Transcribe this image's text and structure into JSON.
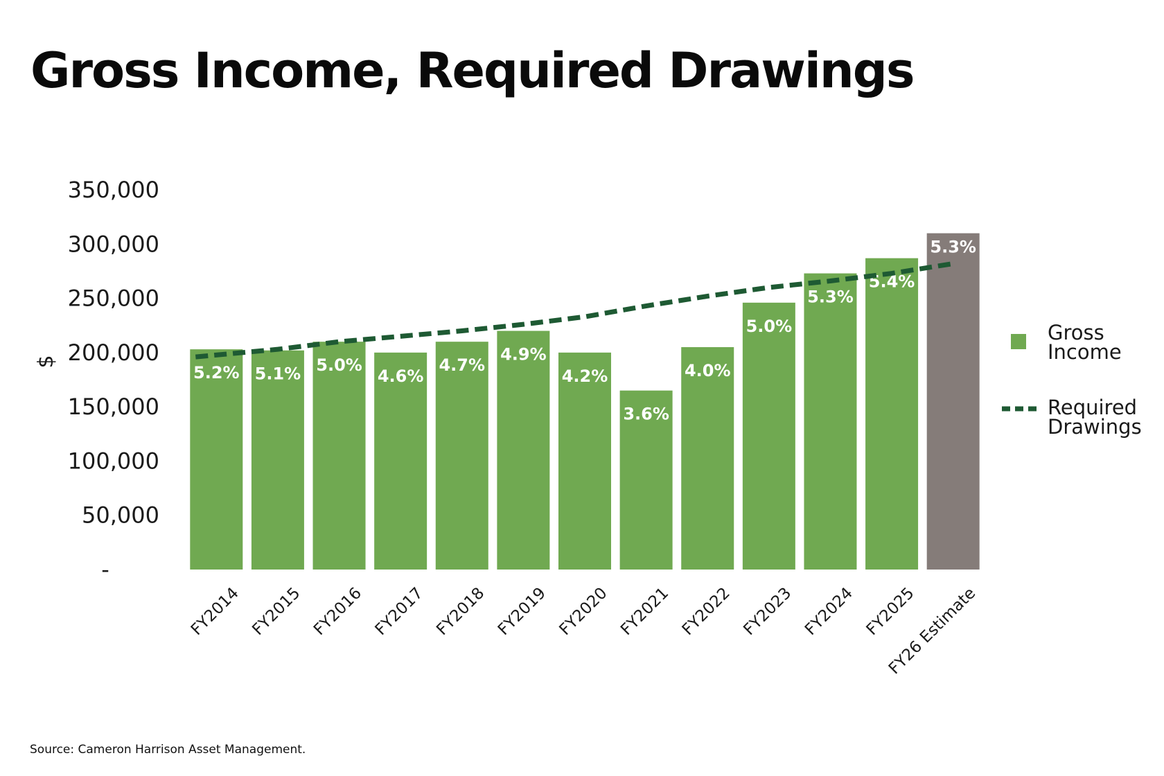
{
  "chart_data": {
    "type": "bar",
    "title": "Gross Income, Required Drawings",
    "ylabel": "$",
    "xlabel": "",
    "ylim": [
      0,
      350000
    ],
    "yticks": [
      0,
      50000,
      100000,
      150000,
      200000,
      250000,
      300000,
      350000
    ],
    "ytick_labels": [
      "-",
      "50,000",
      "100,000",
      "150,000",
      "200,000",
      "250,000",
      "300,000",
      "350,000"
    ],
    "categories": [
      "FY2014",
      "FY2015",
      "FY2016",
      "FY2017",
      "FY2018",
      "FY2019",
      "FY2020",
      "FY2021",
      "FY2022",
      "FY2023",
      "FY2024",
      "FY2025",
      "FY26 Estimate"
    ],
    "series": [
      {
        "name": "Gross Income",
        "kind": "bar",
        "color": "#70a951",
        "estimate_color": "#857c79",
        "values": [
          203000,
          202000,
          210000,
          200000,
          210000,
          220000,
          200000,
          165000,
          205000,
          246000,
          273000,
          287000,
          310000
        ],
        "bar_labels": [
          "5.2%",
          "5.1%",
          "5.0%",
          "4.6%",
          "4.7%",
          "4.9%",
          "4.2%",
          "3.6%",
          "4.0%",
          "5.0%",
          "5.3%",
          "5.4%",
          "5.3%"
        ]
      },
      {
        "name": "Required Drawings",
        "kind": "line",
        "style": "dashed",
        "color": "#1e5a33",
        "values": [
          196000,
          203000,
          210000,
          215000,
          220000,
          226000,
          233000,
          243000,
          252000,
          260000,
          266000,
          273000,
          282000
        ]
      }
    ],
    "legend": {
      "position": "right",
      "items": [
        {
          "lines": [
            "Gross",
            "Income"
          ],
          "marker": "square"
        },
        {
          "lines": [
            "Required",
            "Drawings"
          ],
          "marker": "dashed-line"
        }
      ]
    },
    "grid": false
  },
  "footer": {
    "source": "Source: Cameron Harrison Asset Management."
  }
}
